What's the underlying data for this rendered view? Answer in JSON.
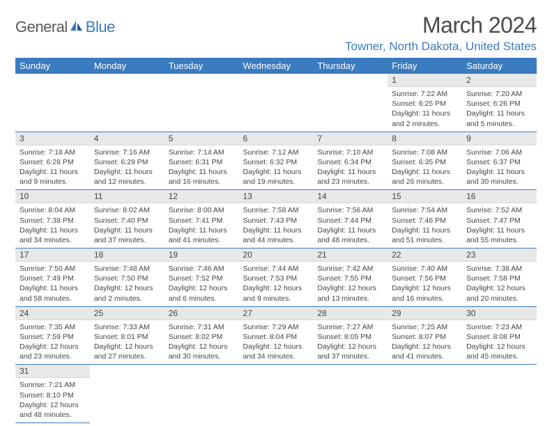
{
  "logo": {
    "text_a": "General",
    "text_b": "Blue"
  },
  "header": {
    "month_title": "March 2024",
    "location": "Towner, North Dakota, United States"
  },
  "colors": {
    "header_bg": "#3b7bbf",
    "header_text": "#ffffff",
    "daynum_bg": "#e8e8e8",
    "row_border": "#3b7bbf",
    "body_text": "#444444",
    "location_text": "#3b7bbf"
  },
  "weekdays": [
    "Sunday",
    "Monday",
    "Tuesday",
    "Wednesday",
    "Thursday",
    "Friday",
    "Saturday"
  ],
  "weeks": [
    [
      null,
      null,
      null,
      null,
      null,
      {
        "n": "1",
        "sunrise": "7:22 AM",
        "sunset": "6:25 PM",
        "day_h": "11",
        "day_m": "2"
      },
      {
        "n": "2",
        "sunrise": "7:20 AM",
        "sunset": "6:26 PM",
        "day_h": "11",
        "day_m": "5"
      }
    ],
    [
      {
        "n": "3",
        "sunrise": "7:18 AM",
        "sunset": "6:28 PM",
        "day_h": "11",
        "day_m": "9"
      },
      {
        "n": "4",
        "sunrise": "7:16 AM",
        "sunset": "6:29 PM",
        "day_h": "11",
        "day_m": "12"
      },
      {
        "n": "5",
        "sunrise": "7:14 AM",
        "sunset": "6:31 PM",
        "day_h": "11",
        "day_m": "16"
      },
      {
        "n": "6",
        "sunrise": "7:12 AM",
        "sunset": "6:32 PM",
        "day_h": "11",
        "day_m": "19"
      },
      {
        "n": "7",
        "sunrise": "7:10 AM",
        "sunset": "6:34 PM",
        "day_h": "11",
        "day_m": "23"
      },
      {
        "n": "8",
        "sunrise": "7:08 AM",
        "sunset": "6:35 PM",
        "day_h": "11",
        "day_m": "26"
      },
      {
        "n": "9",
        "sunrise": "7:06 AM",
        "sunset": "6:37 PM",
        "day_h": "11",
        "day_m": "30"
      }
    ],
    [
      {
        "n": "10",
        "sunrise": "8:04 AM",
        "sunset": "7:38 PM",
        "day_h": "11",
        "day_m": "34"
      },
      {
        "n": "11",
        "sunrise": "8:02 AM",
        "sunset": "7:40 PM",
        "day_h": "11",
        "day_m": "37"
      },
      {
        "n": "12",
        "sunrise": "8:00 AM",
        "sunset": "7:41 PM",
        "day_h": "11",
        "day_m": "41"
      },
      {
        "n": "13",
        "sunrise": "7:58 AM",
        "sunset": "7:43 PM",
        "day_h": "11",
        "day_m": "44"
      },
      {
        "n": "14",
        "sunrise": "7:56 AM",
        "sunset": "7:44 PM",
        "day_h": "11",
        "day_m": "48"
      },
      {
        "n": "15",
        "sunrise": "7:54 AM",
        "sunset": "7:46 PM",
        "day_h": "11",
        "day_m": "51"
      },
      {
        "n": "16",
        "sunrise": "7:52 AM",
        "sunset": "7:47 PM",
        "day_h": "11",
        "day_m": "55"
      }
    ],
    [
      {
        "n": "17",
        "sunrise": "7:50 AM",
        "sunset": "7:49 PM",
        "day_h": "11",
        "day_m": "58"
      },
      {
        "n": "18",
        "sunrise": "7:48 AM",
        "sunset": "7:50 PM",
        "day_h": "12",
        "day_m": "2"
      },
      {
        "n": "19",
        "sunrise": "7:46 AM",
        "sunset": "7:52 PM",
        "day_h": "12",
        "day_m": "6"
      },
      {
        "n": "20",
        "sunrise": "7:44 AM",
        "sunset": "7:53 PM",
        "day_h": "12",
        "day_m": "9"
      },
      {
        "n": "21",
        "sunrise": "7:42 AM",
        "sunset": "7:55 PM",
        "day_h": "12",
        "day_m": "13"
      },
      {
        "n": "22",
        "sunrise": "7:40 AM",
        "sunset": "7:56 PM",
        "day_h": "12",
        "day_m": "16"
      },
      {
        "n": "23",
        "sunrise": "7:38 AM",
        "sunset": "7:58 PM",
        "day_h": "12",
        "day_m": "20"
      }
    ],
    [
      {
        "n": "24",
        "sunrise": "7:35 AM",
        "sunset": "7:59 PM",
        "day_h": "12",
        "day_m": "23"
      },
      {
        "n": "25",
        "sunrise": "7:33 AM",
        "sunset": "8:01 PM",
        "day_h": "12",
        "day_m": "27"
      },
      {
        "n": "26",
        "sunrise": "7:31 AM",
        "sunset": "8:02 PM",
        "day_h": "12",
        "day_m": "30"
      },
      {
        "n": "27",
        "sunrise": "7:29 AM",
        "sunset": "8:04 PM",
        "day_h": "12",
        "day_m": "34"
      },
      {
        "n": "28",
        "sunrise": "7:27 AM",
        "sunset": "8:05 PM",
        "day_h": "12",
        "day_m": "37"
      },
      {
        "n": "29",
        "sunrise": "7:25 AM",
        "sunset": "8:07 PM",
        "day_h": "12",
        "day_m": "41"
      },
      {
        "n": "30",
        "sunrise": "7:23 AM",
        "sunset": "8:08 PM",
        "day_h": "12",
        "day_m": "45"
      }
    ],
    [
      {
        "n": "31",
        "sunrise": "7:21 AM",
        "sunset": "8:10 PM",
        "day_h": "12",
        "day_m": "48"
      },
      null,
      null,
      null,
      null,
      null,
      null
    ]
  ],
  "labels": {
    "sunrise": "Sunrise:",
    "sunset": "Sunset:",
    "daylight": "Daylight:",
    "hours": "hours",
    "and": "and",
    "minutes": "minutes."
  }
}
